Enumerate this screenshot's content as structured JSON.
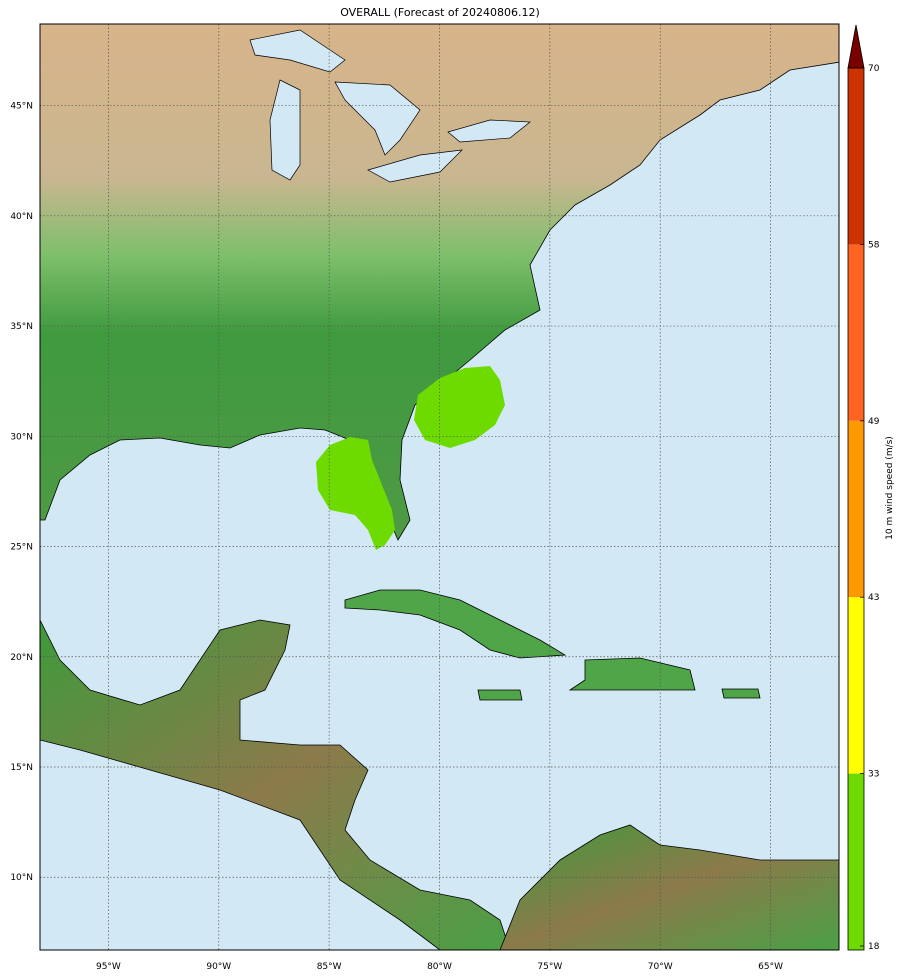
{
  "title": "OVERALL (Forecast of 20240806.12)",
  "map": {
    "projection": "cylindrical",
    "lon_range": [
      -98.1,
      -61.9
    ],
    "lat_range": [
      6.7,
      48.7
    ],
    "lon_ticks": [
      {
        "value": -95,
        "label": "95°W"
      },
      {
        "value": -90,
        "label": "90°W"
      },
      {
        "value": -85,
        "label": "85°W"
      },
      {
        "value": -80,
        "label": "80°W"
      },
      {
        "value": -75,
        "label": "75°W"
      },
      {
        "value": -70,
        "label": "70°W"
      },
      {
        "value": -65,
        "label": "65°W"
      }
    ],
    "lat_ticks": [
      {
        "value": 45,
        "label": "45°N"
      },
      {
        "value": 40,
        "label": "40°N"
      },
      {
        "value": 35,
        "label": "35°N"
      },
      {
        "value": 30,
        "label": "30°N"
      },
      {
        "value": 25,
        "label": "25°N"
      },
      {
        "value": 20,
        "label": "20°N"
      },
      {
        "value": 15,
        "label": "15°N"
      },
      {
        "value": 10,
        "label": "10°N"
      }
    ],
    "gridlines": true,
    "ocean_color": "#d3e8f5",
    "wind_swath_color": "#6ddb00"
  },
  "colorbar": {
    "label": "10 m wind speed (m/s)",
    "bounds": [
      18,
      33,
      43,
      49,
      58,
      70
    ],
    "colors": [
      "#6ddb00",
      "#ffff00",
      "#ff9900",
      "#ff6322",
      "#cc3300"
    ],
    "extend_color": "#7a0000",
    "extend": "max"
  }
}
